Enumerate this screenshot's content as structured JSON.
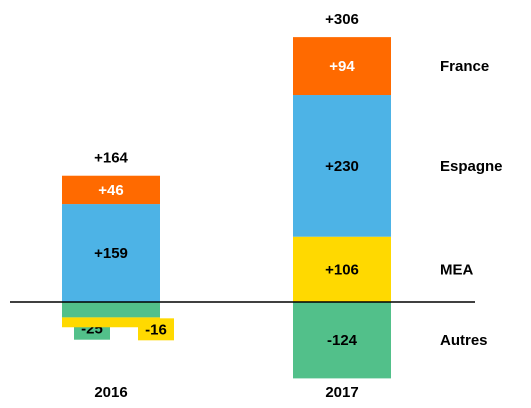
{
  "chart_data": {
    "type": "stacked_bar",
    "categories": [
      "2016",
      "2017"
    ],
    "series": [
      {
        "name": "Autres",
        "color": "#52c08a",
        "values": [
          -25,
          -124
        ],
        "value_labels": [
          "-25",
          "-124"
        ]
      },
      {
        "name": "MEA",
        "color": "#ffd900",
        "values": [
          -16,
          106
        ],
        "value_labels": [
          "-16",
          "+106"
        ]
      },
      {
        "name": "Espagne",
        "color": "#4db3e6",
        "values": [
          159,
          230
        ],
        "value_labels": [
          "+159",
          "+230"
        ]
      },
      {
        "name": "France",
        "color": "#ff6a00",
        "values": [
          46,
          94
        ],
        "value_labels": [
          "+46",
          "+94"
        ]
      }
    ],
    "totals": [
      164,
      306
    ],
    "total_labels": [
      "+164",
      "+306"
    ],
    "ylim": [
      -150,
      500
    ]
  }
}
